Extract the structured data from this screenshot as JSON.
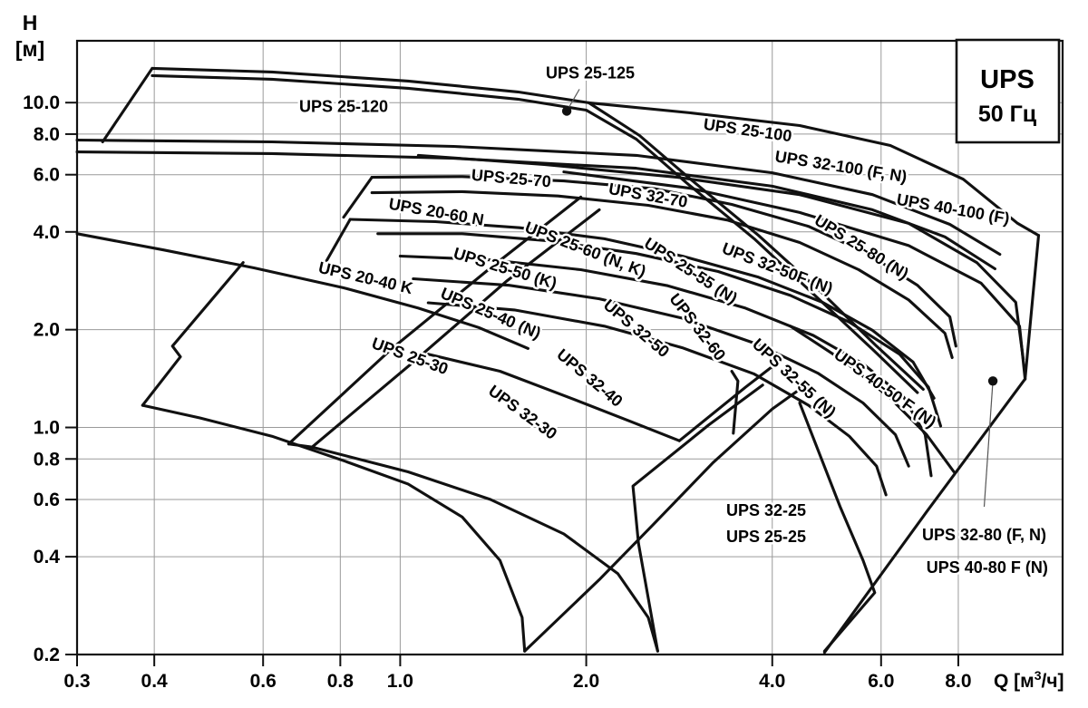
{
  "legend_box": {
    "line1": "UPS",
    "line2": "50 Гц"
  },
  "axes": {
    "y_title_line1": "H",
    "y_title_line2": "[м]",
    "x_title_prefix": "Q [м",
    "x_title_sup": "3",
    "x_title_suffix": "/ч]"
  },
  "colors": {
    "curve": "#111111",
    "grid": "#9a9a9a",
    "frame": "#111111",
    "text": "#000000",
    "leader": "#555555",
    "background": "#ffffff"
  },
  "chart_data": {
    "type": "line",
    "title": "UPS 50 Гц",
    "xlabel": "Q [м3/ч]",
    "ylabel": "H [м]",
    "xscale": "log",
    "yscale": "log",
    "x_range": [
      0.3,
      11.8
    ],
    "y_range": [
      0.2,
      15.5
    ],
    "grid": true,
    "x_ticks": [
      0.3,
      0.4,
      0.6,
      0.8,
      1.0,
      2.0,
      4.0,
      6.0,
      8.0
    ],
    "x_tick_labels": [
      "0.3",
      "0.4",
      "0.6",
      "0.8",
      "1.0",
      "2.0",
      "4.0",
      "6.0",
      "8.0"
    ],
    "y_ticks": [
      10.0,
      8.0,
      6.0,
      4.0,
      2.0,
      1.0,
      0.8,
      0.6,
      0.4,
      0.2
    ],
    "y_tick_labels": [
      "10.0",
      "8.0",
      "6.0",
      "4.0",
      "2.0",
      "1.0",
      "0.8",
      "0.6",
      "0.4",
      "0.2"
    ],
    "envelopes": [
      {
        "name": "min-25-120-upper",
        "points": [
          [
            0.3,
            7.67
          ],
          [
            0.62,
            7.57
          ],
          [
            1.22,
            7.33
          ],
          [
            2.41,
            6.88
          ],
          [
            4.0,
            6.08
          ],
          [
            5.81,
            5.21
          ],
          [
            7.75,
            4.22
          ],
          [
            9.34,
            3.41
          ]
        ]
      },
      {
        "name": "min-25-120-lower",
        "points": [
          [
            0.3,
            7.05
          ],
          [
            0.62,
            6.97
          ],
          [
            1.22,
            6.74
          ],
          [
            2.41,
            6.28
          ],
          [
            4.0,
            5.53
          ],
          [
            5.81,
            4.68
          ],
          [
            7.61,
            3.86
          ],
          [
            9.17,
            3.08
          ]
        ]
      },
      {
        "name": "edge-25-120-left",
        "points": [
          [
            0.33,
            7.57
          ],
          [
            0.397,
            12.75
          ]
        ]
      },
      {
        "name": "max-25-125",
        "points": [
          [
            0.397,
            12.75
          ],
          [
            0.62,
            12.43
          ],
          [
            1.03,
            11.65
          ],
          [
            1.55,
            10.79
          ],
          [
            2.02,
            9.99
          ],
          [
            2.44,
            7.92
          ],
          [
            2.95,
            5.81
          ],
          [
            3.8,
            3.9
          ],
          [
            4.82,
            2.59
          ],
          [
            5.9,
            1.78
          ],
          [
            7.02,
            1.31
          ]
        ]
      },
      {
        "name": "max-25-120",
        "points": [
          [
            0.397,
            12.11
          ],
          [
            0.62,
            11.8
          ],
          [
            1.03,
            11.07
          ],
          [
            1.55,
            10.25
          ],
          [
            2.0,
            9.48
          ],
          [
            2.41,
            7.72
          ],
          [
            2.9,
            5.68
          ],
          [
            3.74,
            3.81
          ],
          [
            4.74,
            2.5
          ],
          [
            5.81,
            1.74
          ],
          [
            6.87,
            1.28
          ]
        ]
      },
      {
        "name": "max-25-100",
        "points": [
          [
            2.02,
            9.99
          ],
          [
            2.95,
            9.3
          ],
          [
            4.43,
            8.5
          ],
          [
            6.21,
            7.38
          ],
          [
            8.15,
            5.81
          ],
          [
            9.98,
            4.25
          ],
          [
            10.79,
            3.9
          ]
        ]
      },
      {
        "name": "edge-right-100",
        "points": [
          [
            10.79,
            3.9
          ],
          [
            10.55,
            2.49
          ],
          [
            10.26,
            1.41
          ]
        ]
      },
      {
        "name": "edge-right-long",
        "points": [
          [
            10.26,
            1.41
          ],
          [
            7.11,
            0.55
          ],
          [
            4.86,
            0.203
          ]
        ]
      },
      {
        "name": "max-32-100",
        "points": [
          [
            1.07,
            6.88
          ],
          [
            1.71,
            6.45
          ],
          [
            2.81,
            5.89
          ],
          [
            4.43,
            5.21
          ],
          [
            6.65,
            4.25
          ],
          [
            8.57,
            3.22
          ],
          [
            9.91,
            2.43
          ],
          [
            10.19,
            1.62
          ]
        ]
      },
      {
        "name": "max-40-100",
        "points": [
          [
            1.84,
            6.12
          ],
          [
            2.95,
            5.45
          ],
          [
            4.43,
            4.59
          ],
          [
            6.65,
            3.63
          ],
          [
            8.71,
            2.78
          ],
          [
            10.05,
            2.05
          ],
          [
            10.26,
            1.41
          ]
        ]
      },
      {
        "name": "edge-25-70-left",
        "points": [
          [
            0.81,
            4.44
          ],
          [
            0.9,
            5.89
          ]
        ]
      },
      {
        "name": "max-25-70",
        "points": [
          [
            0.9,
            5.89
          ],
          [
            1.26,
            5.92
          ],
          [
            1.84,
            5.74
          ],
          [
            2.58,
            5.43
          ],
          [
            3.44,
            4.86
          ],
          [
            4.58,
            4.16
          ],
          [
            5.7,
            3.43
          ],
          [
            6.87,
            2.74
          ],
          [
            7.75,
            2.19
          ],
          [
            7.93,
            1.78
          ]
        ]
      },
      {
        "name": "max-32-70",
        "points": [
          [
            0.9,
            5.28
          ],
          [
            1.26,
            5.32
          ],
          [
            1.8,
            5.16
          ],
          [
            2.52,
            4.83
          ],
          [
            3.38,
            4.35
          ],
          [
            4.43,
            3.71
          ],
          [
            5.52,
            3.06
          ],
          [
            6.65,
            2.47
          ],
          [
            7.61,
            1.95
          ],
          [
            7.82,
            1.64
          ]
        ]
      },
      {
        "name": "edge-20-60-left",
        "points": [
          [
            0.76,
            3.26
          ],
          [
            0.83,
            4.37
          ]
        ]
      },
      {
        "name": "max-20-60",
        "points": [
          [
            0.83,
            4.37
          ],
          [
            1.14,
            4.3
          ],
          [
            1.56,
            4.12
          ],
          [
            2.14,
            3.81
          ],
          [
            2.86,
            3.37
          ],
          [
            3.8,
            2.9
          ],
          [
            4.82,
            2.43
          ],
          [
            5.81,
            1.99
          ],
          [
            6.76,
            1.59
          ],
          [
            7.31,
            1.23
          ]
        ]
      },
      {
        "name": "max-25-60",
        "points": [
          [
            0.92,
            3.95
          ],
          [
            1.26,
            3.95
          ],
          [
            1.75,
            3.75
          ],
          [
            2.41,
            3.43
          ],
          [
            3.27,
            3.02
          ],
          [
            4.28,
            2.55
          ],
          [
            5.33,
            2.11
          ],
          [
            6.43,
            1.68
          ],
          [
            7.16,
            1.33
          ],
          [
            7.49,
            1.01
          ]
        ]
      },
      {
        "name": "max-25-55",
        "points": [
          [
            1.0,
            3.37
          ],
          [
            1.4,
            3.28
          ],
          [
            1.96,
            3.06
          ],
          [
            2.71,
            2.73
          ],
          [
            3.62,
            2.33
          ],
          [
            4.66,
            1.92
          ],
          [
            5.61,
            1.57
          ],
          [
            6.53,
            1.24
          ],
          [
            7.07,
            0.95
          ],
          [
            7.23,
            0.71
          ]
        ]
      },
      {
        "name": "max-32-50",
        "points": [
          [
            1.05,
            2.87
          ],
          [
            1.5,
            2.74
          ],
          [
            2.1,
            2.49
          ],
          [
            2.86,
            2.17
          ],
          [
            3.8,
            1.8
          ],
          [
            4.74,
            1.47
          ],
          [
            5.61,
            1.19
          ],
          [
            6.33,
            0.95
          ],
          [
            6.65,
            0.76
          ]
        ]
      },
      {
        "name": "max-32-60",
        "points": [
          [
            1.11,
            2.42
          ],
          [
            1.53,
            2.3
          ],
          [
            2.14,
            2.05
          ],
          [
            2.86,
            1.76
          ],
          [
            3.74,
            1.46
          ],
          [
            4.58,
            1.17
          ],
          [
            5.33,
            0.94
          ],
          [
            5.9,
            0.76
          ],
          [
            6.11,
            0.62
          ]
        ]
      },
      {
        "name": "edge-25-50-left",
        "points": [
          [
            0.66,
            0.89
          ],
          [
            0.97,
            1.75
          ],
          [
            1.4,
            3.1
          ],
          [
            1.96,
            5.12
          ]
        ]
      },
      {
        "name": "edge-25-40-left",
        "points": [
          [
            0.72,
            0.87
          ],
          [
            1.05,
            1.59
          ],
          [
            1.49,
            2.83
          ],
          [
            2.1,
            4.68
          ]
        ]
      },
      {
        "name": "notch-25-50",
        "points": [
          [
            0.66,
            0.89
          ],
          [
            0.72,
            0.87
          ]
        ]
      },
      {
        "name": "max-25-30",
        "points": [
          [
            0.3,
            3.95
          ],
          [
            0.414,
            3.52
          ],
          [
            0.58,
            3.1
          ],
          [
            0.81,
            2.69
          ],
          [
            1.07,
            2.33
          ],
          [
            1.34,
            2.03
          ],
          [
            1.61,
            1.75
          ]
        ]
      },
      {
        "name": "edge-20-40-left",
        "points": [
          [
            0.383,
            1.17
          ],
          [
            0.441,
            1.65
          ],
          [
            0.428,
            1.78
          ],
          [
            0.557,
            3.22
          ]
        ]
      },
      {
        "name": "min-25-30",
        "points": [
          [
            0.383,
            1.17
          ],
          [
            0.474,
            1.07
          ],
          [
            0.62,
            0.94
          ],
          [
            0.81,
            0.79
          ],
          [
            1.03,
            0.67
          ],
          [
            1.26,
            0.53
          ],
          [
            1.45,
            0.39
          ],
          [
            1.575,
            0.26
          ],
          [
            1.59,
            0.205
          ]
        ]
      },
      {
        "name": "edge-25-30-right",
        "points": [
          [
            1.59,
            0.205
          ],
          [
            2.1,
            0.34
          ],
          [
            2.56,
            0.5
          ],
          [
            3.21,
            0.78
          ],
          [
            4.0,
            1.14
          ],
          [
            4.43,
            1.31
          ]
        ]
      },
      {
        "name": "min-25-40",
        "points": [
          [
            0.72,
            0.87
          ],
          [
            1.03,
            0.73
          ],
          [
            1.4,
            0.6
          ],
          [
            1.84,
            0.47
          ],
          [
            2.25,
            0.355
          ],
          [
            2.52,
            0.26
          ],
          [
            2.61,
            0.205
          ]
        ]
      },
      {
        "name": "edge-25-40-right",
        "points": [
          [
            2.61,
            0.205
          ],
          [
            2.43,
            0.44
          ],
          [
            2.38,
            0.66
          ],
          [
            3.16,
            1.02
          ],
          [
            3.86,
            1.35
          ]
        ]
      },
      {
        "name": "edge-25-25-right",
        "points": [
          [
            4.43,
            1.19
          ],
          [
            5.15,
            0.57
          ],
          [
            5.61,
            0.39
          ],
          [
            5.86,
            0.31
          ],
          [
            4.86,
            0.205
          ]
        ]
      },
      {
        "name": "notch-32-60",
        "points": [
          [
            3.44,
            1.49
          ],
          [
            3.52,
            1.39
          ],
          [
            3.46,
            0.96
          ]
        ]
      },
      {
        "name": "edge-32-40-right",
        "points": [
          [
            2.83,
            0.91
          ],
          [
            3.62,
            1.33
          ],
          [
            4.14,
            1.62
          ]
        ]
      },
      {
        "name": "max-32-40",
        "points": [
          [
            1.11,
            1.68
          ],
          [
            1.45,
            1.49
          ],
          [
            1.89,
            1.23
          ],
          [
            2.37,
            1.04
          ],
          [
            2.83,
            0.91
          ]
        ]
      },
      {
        "name": "max-40-50",
        "points": [
          [
            4.28,
            2.05
          ],
          [
            5.25,
            1.59
          ],
          [
            6.21,
            1.23
          ],
          [
            7.11,
            0.95
          ],
          [
            7.87,
            0.73
          ]
        ]
      }
    ],
    "curve_labels": [
      {
        "text": "UPS 25-120",
        "q": 0.81,
        "h": 9.37,
        "rot": 0
      },
      {
        "text": "UPS 25-125",
        "q": 2.03,
        "h": 11.88,
        "rot": 0
      },
      {
        "text": "UPS 25-100",
        "q": 3.64,
        "h": 7.92,
        "rot": 8
      },
      {
        "text": "UPS 32-100 (F, N)",
        "q": 5.15,
        "h": 6.12,
        "rot": 9
      },
      {
        "text": "UPS 40-100 (F)",
        "q": 7.82,
        "h": 4.53,
        "rot": 10
      },
      {
        "text": "UPS 25-70",
        "q": 1.51,
        "h": 5.63,
        "rot": 5
      },
      {
        "text": "UPS 32-70",
        "q": 2.51,
        "h": 4.99,
        "rot": 10
      },
      {
        "text": "UPS 20-60 N",
        "q": 1.14,
        "h": 4.44,
        "rot": 10
      },
      {
        "text": "UPS 25-60 (N, K)",
        "q": 1.98,
        "h": 3.41,
        "rot": 21
      },
      {
        "text": "UPS 25-55 (N)",
        "q": 2.92,
        "h": 2.94,
        "rot": 33
      },
      {
        "text": "UPS 32-50F (N)",
        "q": 4.05,
        "h": 2.98,
        "rot": 21
      },
      {
        "text": "UPS 25-80 (N)",
        "q": 5.52,
        "h": 3.48,
        "rot": 32
      },
      {
        "text": "UPS 25-50 (K)",
        "q": 1.47,
        "h": 2.98,
        "rot": 17
      },
      {
        "text": "UPS 25-40 (N)",
        "q": 1.39,
        "h": 2.17,
        "rot": 23
      },
      {
        "text": "UPS 32-50",
        "q": 2.38,
        "h": 1.96,
        "rot": 40
      },
      {
        "text": "UPS 32-60",
        "q": 2.98,
        "h": 1.99,
        "rot": 52
      },
      {
        "text": "UPS 32-55 (N)",
        "q": 4.28,
        "h": 1.38,
        "rot": 43
      },
      {
        "text": "UPS 40-50 F (N)",
        "q": 6.02,
        "h": 1.28,
        "rot": 36
      },
      {
        "text": "UPS 20-40 K",
        "q": 0.875,
        "h": 2.78,
        "rot": 13
      },
      {
        "text": "UPS 25-30",
        "q": 1.03,
        "h": 1.6,
        "rot": 20
      },
      {
        "text": "UPS 32-40",
        "q": 2.0,
        "h": 1.38,
        "rot": 40
      },
      {
        "text": "UPS 32-30",
        "q": 1.56,
        "h": 1.08,
        "rot": 36
      },
      {
        "text": "UPS 32-25",
        "q": 3.91,
        "h": 0.535,
        "rot": 0
      },
      {
        "text": "UPS 25-25",
        "q": 3.91,
        "h": 0.444,
        "rot": 0
      },
      {
        "text": "UPS 32-80 (F, N)",
        "q": 8.81,
        "h": 0.45,
        "rot": 0
      },
      {
        "text": "UPS 40-80 F (N)",
        "q": 8.91,
        "h": 0.357,
        "rot": 0
      }
    ],
    "markers": [
      {
        "name": "dot-ups-25-125",
        "q": 1.86,
        "h": 9.42,
        "leader_to": {
          "q": 1.95,
          "h": 11.0
        }
      },
      {
        "name": "dot-ups-32-80",
        "q": 9.1,
        "h": 1.39,
        "leader_to": {
          "q": 8.81,
          "h": 0.57
        }
      }
    ]
  }
}
